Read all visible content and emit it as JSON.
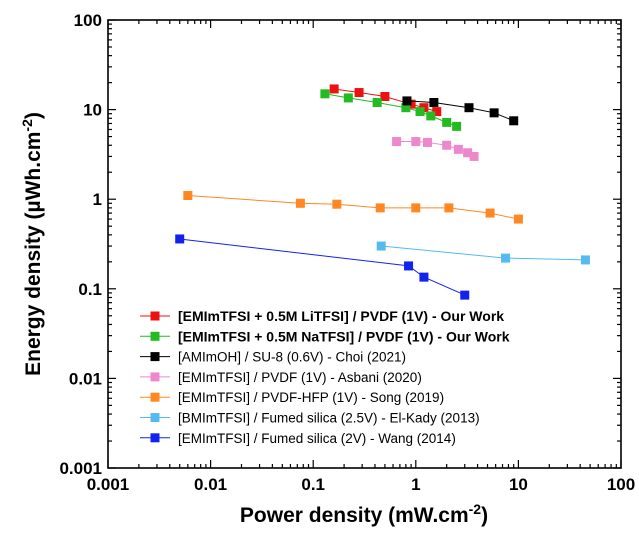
{
  "chart_data": {
    "type": "scatter",
    "x_scale": "log",
    "y_scale": "log",
    "xlim": [
      0.001,
      100
    ],
    "ylim": [
      0.001,
      100
    ],
    "grid": false,
    "legend_position": "bottom-left",
    "xlabel": "Power density (mW.cm",
    "xlabel_sup": "-2",
    "xlabel_end": ")",
    "ylabel": "Energy density (µWh.cm",
    "ylabel_sup": "-2",
    "ylabel_end": ")",
    "x_ticks": [
      "0.001",
      "0.01",
      "0.1",
      "1",
      "10",
      "100"
    ],
    "y_ticks": [
      "0.001",
      "0.01",
      "0.1",
      "1",
      "10",
      "100"
    ],
    "series": [
      {
        "name": "[EMImTFSI + 0.5M LiTFSI] / PVDF (1V) - Our Work",
        "color": "#ee1111",
        "bold": true,
        "x": [
          0.16,
          0.28,
          0.5,
          0.9,
          1.2,
          1.6
        ],
        "y": [
          17,
          15.5,
          14,
          11.5,
          10.5,
          9.5
        ]
      },
      {
        "name": "[EMImTFSI + 0.5M NaTFSI] / PVDF (1V) - Our Work",
        "color": "#22bb22",
        "bold": true,
        "x": [
          0.13,
          0.22,
          0.42,
          0.8,
          1.1,
          1.4,
          2.0,
          2.5
        ],
        "y": [
          15,
          13.5,
          12,
          10.5,
          9.5,
          8.5,
          7.2,
          6.5
        ]
      },
      {
        "name": "[AMImOH] / SU-8 (0.6V) - Choi (2021)",
        "color": "#000000",
        "bold": false,
        "x": [
          0.82,
          1.5,
          3.3,
          5.8,
          9.0
        ],
        "y": [
          12.5,
          12,
          10.5,
          9.2,
          7.5
        ]
      },
      {
        "name": "[EMImTFSI] / PVDF (1V) - Asbani (2020)",
        "color": "#ee88cc",
        "bold": false,
        "x": [
          0.65,
          1.0,
          1.3,
          2.0,
          2.6,
          3.2,
          3.7
        ],
        "y": [
          4.4,
          4.4,
          4.3,
          4.0,
          3.6,
          3.3,
          3.0
        ]
      },
      {
        "name": "[EMImTFSI] / PVDF-HFP (1V) - Song (2019)",
        "color": "#ff8822",
        "bold": false,
        "x": [
          0.006,
          0.075,
          0.17,
          0.45,
          1.0,
          2.1,
          5.3,
          10.0
        ],
        "y": [
          1.1,
          0.9,
          0.88,
          0.8,
          0.8,
          0.8,
          0.7,
          0.6
        ]
      },
      {
        "name": "[BMImTFSI] / Fumed silica (2.5V) - El-Kady (2013)",
        "color": "#55bbee",
        "bold": false,
        "x": [
          0.46,
          7.5,
          45.0
        ],
        "y": [
          0.3,
          0.22,
          0.21
        ]
      },
      {
        "name": "[EMImTFSI] / Fumed silica (2V) - Wang (2014)",
        "color": "#1122ee",
        "bold": false,
        "x": [
          0.005,
          0.85,
          1.2,
          3.0
        ],
        "y": [
          0.36,
          0.18,
          0.135,
          0.085
        ]
      }
    ]
  }
}
